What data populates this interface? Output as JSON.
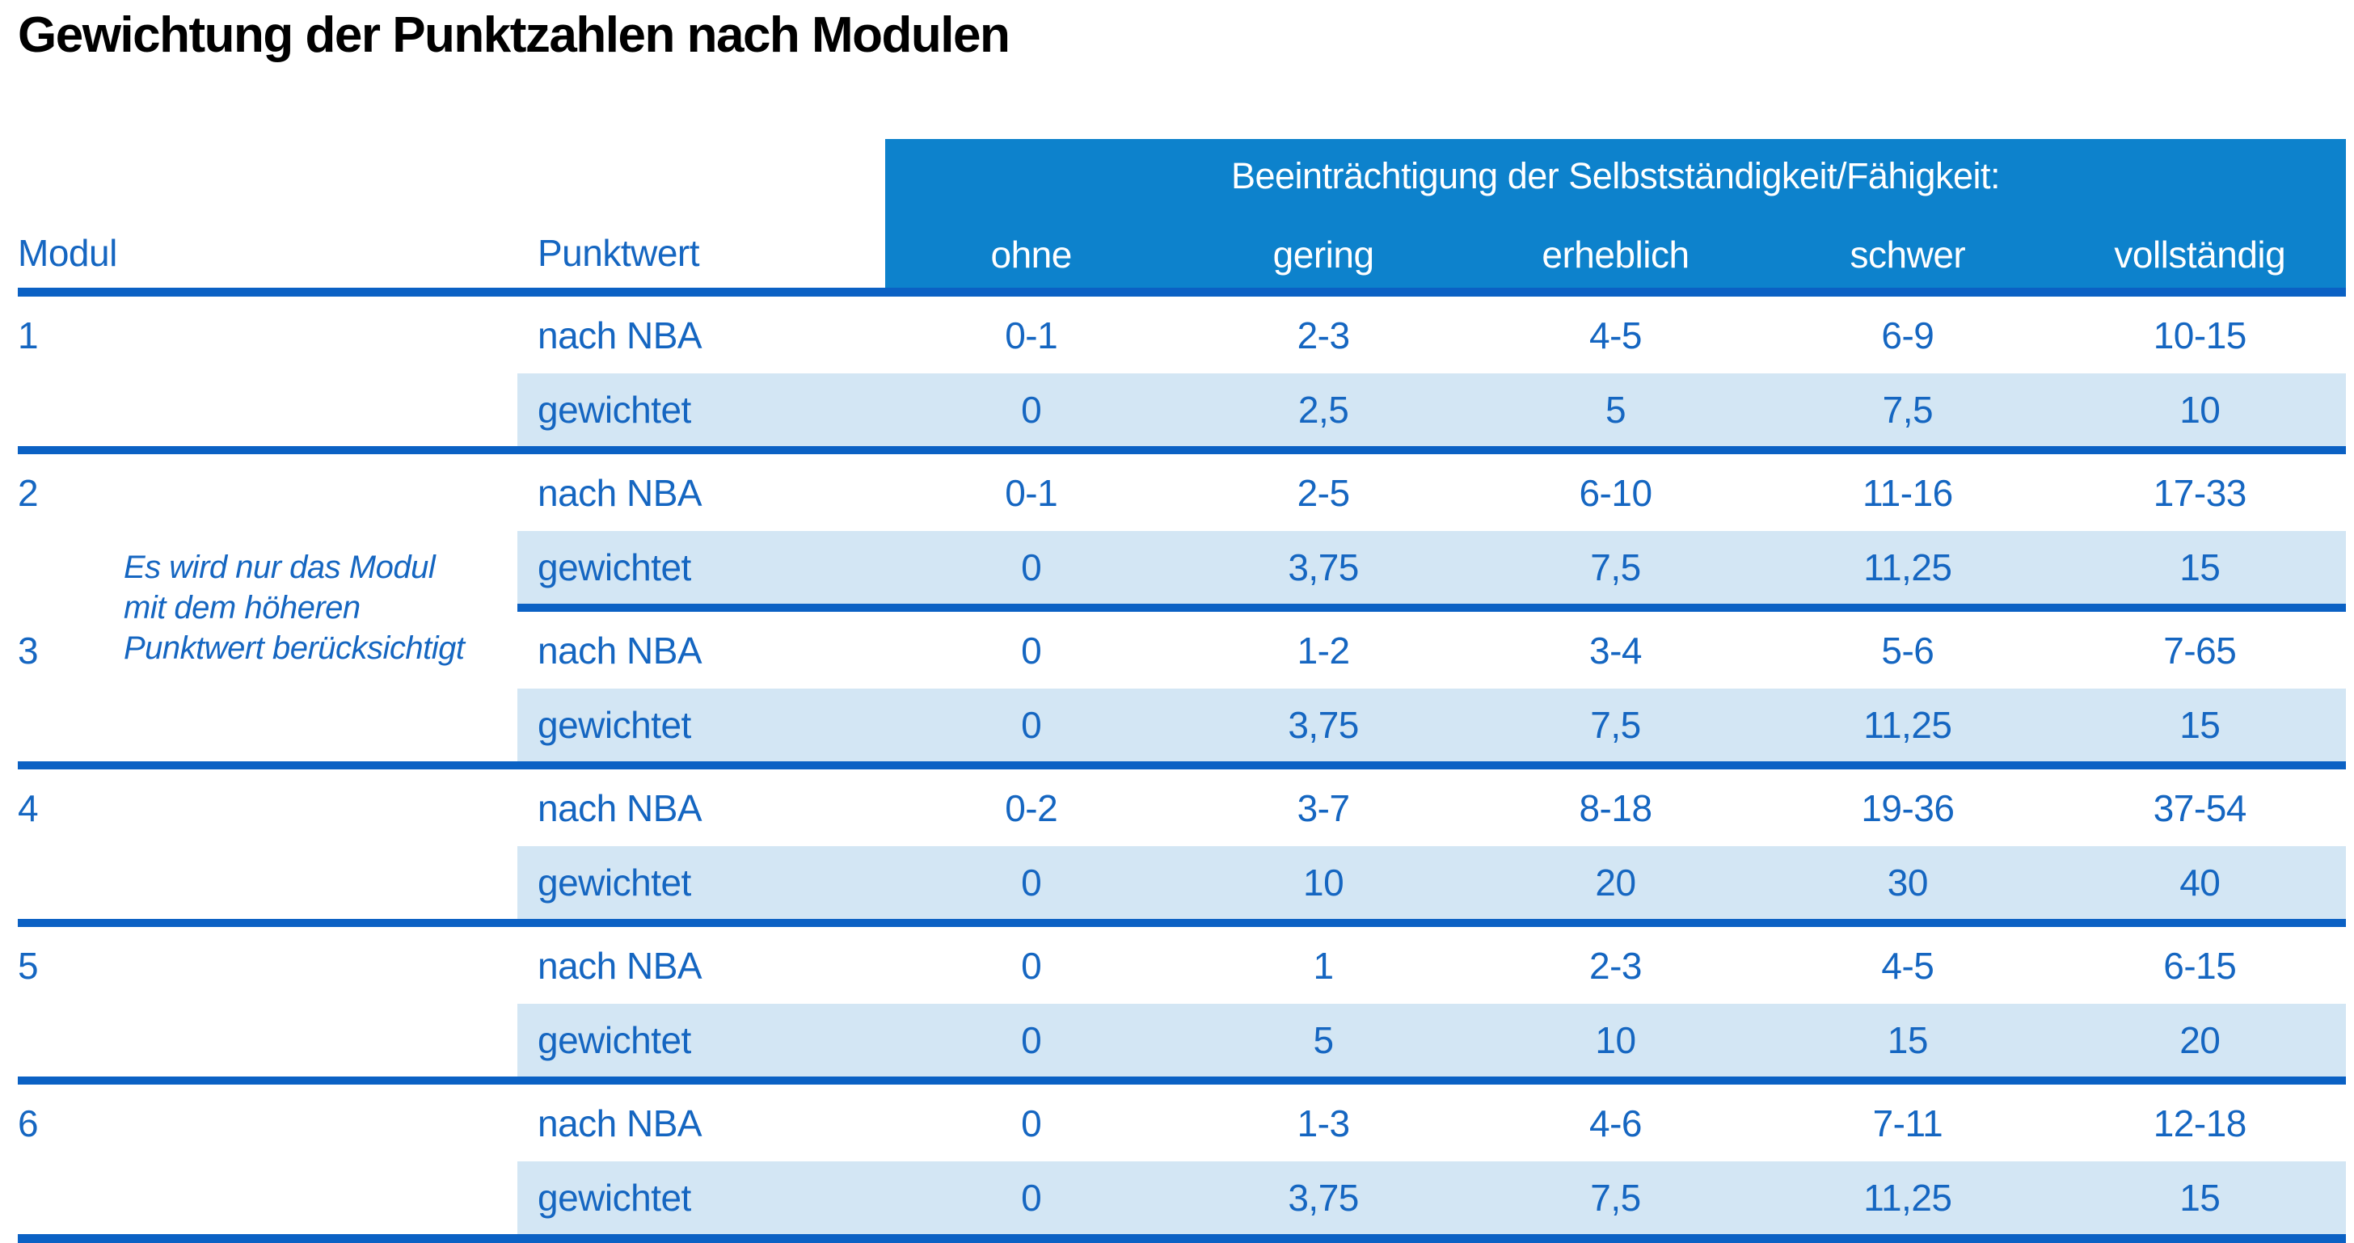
{
  "title": "Gewichtung der Punktzahlen nach Modulen",
  "colors": {
    "header_blue": "#0D82CC",
    "divider_blue": "#0B61C4",
    "row_highlight_blue": "#D3E6F4",
    "text_blue": "#1566C1",
    "title_color": "#000000"
  },
  "table": {
    "modul_header": "Modul",
    "punktwert_header": "Punktwert",
    "impairment_header": "Beeinträchtigung der Selbstständigkeit/Fähigkeit:",
    "severity_levels": [
      "ohne",
      "gering",
      "erheblich",
      "schwer",
      "vollständig"
    ],
    "row_labels": {
      "nba": "nach NBA",
      "weighted": "gewichtet"
    },
    "note": {
      "line1": "Es wird nur das Modul",
      "line2": "mit dem höheren",
      "line3": "Punktwert berücksichtigt"
    },
    "groups": [
      {
        "modul": "1",
        "nba": [
          "0-1",
          "2-3",
          "4-5",
          "6-9",
          "10-15"
        ],
        "gewichtet": [
          "0",
          "2,5",
          "5",
          "7,5",
          "10"
        ]
      },
      {
        "modul": "2",
        "nba": [
          "0-1",
          "2-5",
          "6-10",
          "11-16",
          "17-33"
        ],
        "gewichtet": [
          "0",
          "3,75",
          "7,5",
          "11,25",
          "15"
        ]
      },
      {
        "modul": "3",
        "nba": [
          "0",
          "1-2",
          "3-4",
          "5-6",
          "7-65"
        ],
        "gewichtet": [
          "0",
          "3,75",
          "7,5",
          "11,25",
          "15"
        ]
      },
      {
        "modul": "4",
        "nba": [
          "0-2",
          "3-7",
          "8-18",
          "19-36",
          "37-54"
        ],
        "gewichtet": [
          "0",
          "10",
          "20",
          "30",
          "40"
        ]
      },
      {
        "modul": "5",
        "nba": [
          "0",
          "1",
          "2-3",
          "4-5",
          "6-15"
        ],
        "gewichtet": [
          "0",
          "5",
          "10",
          "15",
          "20"
        ]
      },
      {
        "modul": "6",
        "nba": [
          "0",
          "1-3",
          "4-6",
          "7-11",
          "12-18"
        ],
        "gewichtet": [
          "0",
          "3,75",
          "7,5",
          "11,25",
          "15"
        ]
      }
    ]
  }
}
